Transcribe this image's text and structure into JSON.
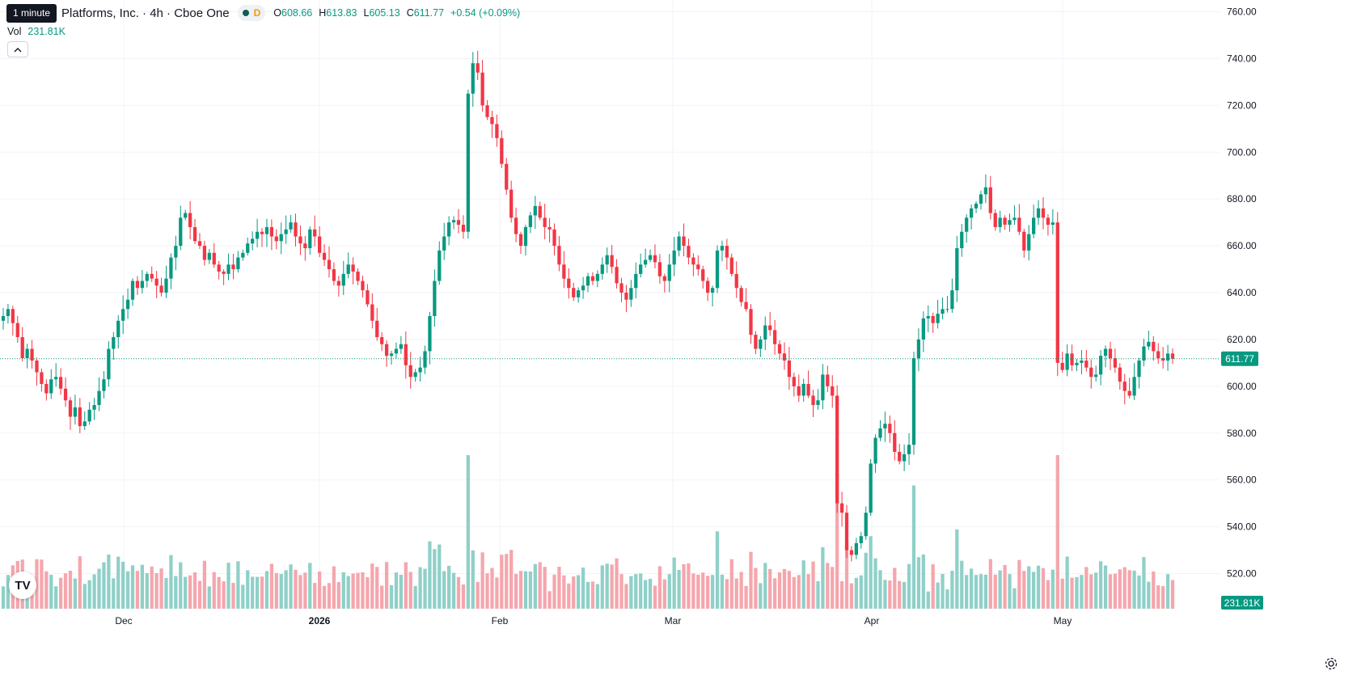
{
  "header": {
    "tooltip": "1 minute",
    "title": "Platforms, Inc. · 4h · Cboe One",
    "badge": "D",
    "ohlc": [
      {
        "k": "O",
        "v": "608.66"
      },
      {
        "k": "H",
        "v": "613.83"
      },
      {
        "k": "L",
        "v": "605.13"
      },
      {
        "k": "C",
        "v": "611.77"
      }
    ],
    "change": "+0.54 (+0.09%)"
  },
  "volume": {
    "label": "Vol",
    "value": "231.81K"
  },
  "colors": {
    "up": "#089981",
    "down": "#f23645",
    "upVol": "#8fd0c8",
    "downVol": "#f5a6ad",
    "grid": "#f0f3fa",
    "text": "#131722"
  },
  "icons": {
    "collapse": "chevron-up-icon",
    "logo": "tradingview-logo-icon",
    "settings": "gear-icon",
    "live": "dot-icon"
  },
  "chart_data": {
    "type": "candlestick",
    "symbol": "Platforms, Inc.",
    "interval": "4h",
    "exchange": "Cboe One",
    "ylim": [
      505,
      765
    ],
    "y_ticks": [
      760,
      740,
      720,
      700,
      680,
      660,
      640,
      620,
      600,
      580,
      560,
      540,
      520
    ],
    "x_tick_labels": [
      "Dec",
      "2026",
      "Feb",
      "Mar",
      "Apr",
      "May"
    ],
    "last_price": 611.77,
    "last_price_label": "611.77",
    "last_volume_label": "231.81K",
    "closes": [
      630,
      633,
      627,
      621,
      612,
      616,
      611,
      606,
      601,
      597,
      603,
      604,
      599,
      594,
      587,
      591,
      583,
      585,
      590,
      592,
      598,
      603,
      616,
      621,
      628,
      633,
      637,
      645,
      642,
      645,
      648,
      646,
      643,
      640,
      646,
      655,
      660,
      672,
      674,
      668,
      662,
      660,
      654,
      657,
      652,
      649,
      648,
      652,
      650,
      655,
      657,
      661,
      663,
      666,
      665,
      668,
      664,
      662,
      665,
      667,
      670,
      664,
      661,
      659,
      667,
      664,
      657,
      654,
      650,
      645,
      643,
      648,
      652,
      649,
      645,
      641,
      635,
      628,
      621,
      618,
      613,
      614,
      616,
      618,
      609,
      604,
      606,
      608,
      615,
      630,
      645,
      658,
      664,
      670,
      671,
      669,
      666,
      725,
      738,
      734,
      720,
      715,
      712,
      706,
      695,
      684,
      672,
      665,
      660,
      668,
      673,
      677,
      672,
      668,
      667,
      660,
      652,
      646,
      642,
      638,
      641,
      643,
      647,
      645,
      648,
      652,
      656,
      651,
      644,
      640,
      637,
      642,
      648,
      652,
      654,
      656,
      653,
      647,
      645,
      652,
      658,
      664,
      660,
      655,
      652,
      650,
      645,
      640,
      642,
      658,
      660,
      655,
      648,
      642,
      636,
      633,
      622,
      616,
      620,
      626,
      624,
      618,
      614,
      611,
      604,
      600,
      596,
      601,
      596,
      592,
      594,
      605,
      600,
      596,
      550,
      546,
      530,
      528,
      533,
      536,
      546,
      567,
      578,
      582,
      584,
      580,
      572,
      568,
      571,
      575,
      612,
      620,
      629,
      630,
      627,
      631,
      633,
      633,
      641,
      659,
      666,
      672,
      676,
      678,
      682,
      685,
      674,
      668,
      672,
      669,
      671,
      672,
      666,
      658,
      665,
      672,
      676,
      672,
      669,
      670,
      610,
      607,
      614,
      609,
      610,
      611,
      608,
      604,
      605,
      613,
      616,
      612,
      608,
      602,
      598,
      596,
      604,
      611,
      617,
      619,
      615,
      612,
      611,
      614,
      611.77
    ]
  }
}
